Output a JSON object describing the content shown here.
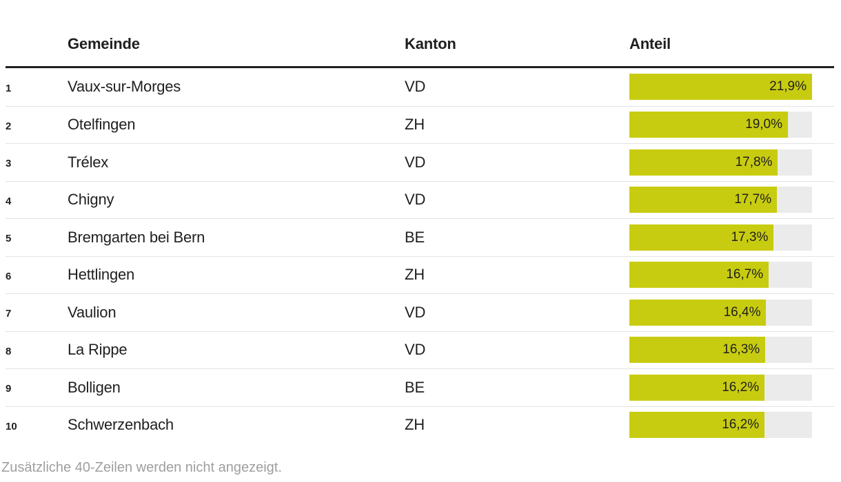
{
  "header": {
    "gemeinde": "Gemeinde",
    "kanton": "Kanton",
    "anteil": "Anteil"
  },
  "footer": {
    "note": "Zusätzliche 40-Zeilen werden nicht angezeigt."
  },
  "colors": {
    "bar": "#c8cc10",
    "track": "#ebebeb",
    "rule": "#1f1f1f",
    "separator": "#e3e3e3",
    "text": "#1f1f1f",
    "footer_text": "#9e9e9e"
  },
  "chart_data": {
    "type": "table",
    "title": "",
    "columns": [
      "Gemeinde",
      "Kanton",
      "Anteil"
    ],
    "bar_max": 21.9,
    "value_format": "percent, comma decimal",
    "rows": [
      {
        "rank": "1",
        "gemeinde": "Vaux-sur-Morges",
        "kanton": "VD",
        "value": 21.9,
        "label": "21,9%",
        "bar_pct": 100
      },
      {
        "rank": "2",
        "gemeinde": "Otelfingen",
        "kanton": "ZH",
        "value": 19.0,
        "label": "19,0%",
        "bar_pct": 86.8
      },
      {
        "rank": "3",
        "gemeinde": "Trélex",
        "kanton": "VD",
        "value": 17.8,
        "label": "17,8%",
        "bar_pct": 81.3
      },
      {
        "rank": "4",
        "gemeinde": "Chigny",
        "kanton": "VD",
        "value": 17.7,
        "label": "17,7%",
        "bar_pct": 80.8
      },
      {
        "rank": "5",
        "gemeinde": "Bremgarten bei Bern",
        "kanton": "BE",
        "value": 17.3,
        "label": "17,3%",
        "bar_pct": 79.0
      },
      {
        "rank": "6",
        "gemeinde": "Hettlingen",
        "kanton": "ZH",
        "value": 16.7,
        "label": "16,7%",
        "bar_pct": 76.3
      },
      {
        "rank": "7",
        "gemeinde": "Vaulion",
        "kanton": "VD",
        "value": 16.4,
        "label": "16,4%",
        "bar_pct": 74.9
      },
      {
        "rank": "8",
        "gemeinde": "La Rippe",
        "kanton": "VD",
        "value": 16.3,
        "label": "16,3%",
        "bar_pct": 74.4
      },
      {
        "rank": "9",
        "gemeinde": "Bolligen",
        "kanton": "BE",
        "value": 16.2,
        "label": "16,2%",
        "bar_pct": 74.0
      },
      {
        "rank": "10",
        "gemeinde": "Schwerzenbach",
        "kanton": "ZH",
        "value": 16.2,
        "label": "16,2%",
        "bar_pct": 74.0
      }
    ],
    "note": "Zusätzliche 40-Zeilen werden nicht angezeigt."
  }
}
